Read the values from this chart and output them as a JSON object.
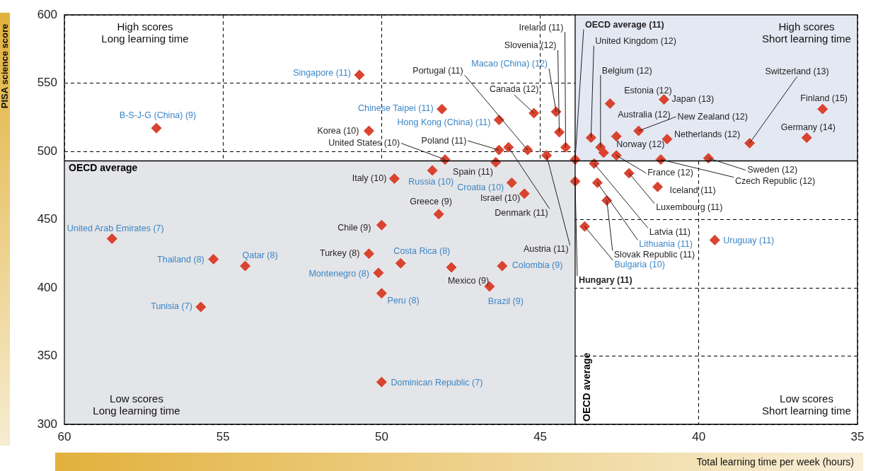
{
  "chart_data": {
    "type": "scatter",
    "xlabel": "Total learning time per week (hours)",
    "ylabel": "PISA science score",
    "xlim": [
      60,
      35
    ],
    "xticks": [
      60,
      55,
      50,
      45,
      40,
      35
    ],
    "ylim": [
      300,
      600
    ],
    "yticks": [
      300,
      350,
      400,
      450,
      500,
      550,
      600
    ],
    "grid": true,
    "marker": "diamond",
    "legend": false,
    "series": [
      {
        "color": "#d9432f",
        "x": [
          50.4,
          48.0,
          46.3,
          45.4,
          45.2,
          44.4,
          44.2,
          46.0,
          44.8,
          46.4,
          49.6,
          45.5,
          48.2,
          50.0,
          50.4,
          47.8,
          43.9,
          42.9,
          43.3,
          42.2,
          41.3,
          42.6,
          41.2,
          39.7,
          43.9,
          43.4,
          43.1,
          43.0,
          42.8,
          41.1,
          42.6,
          41.9,
          41.0,
          38.4,
          36.1,
          36.6
        ],
        "values": [
          515,
          494,
          501,
          501,
          528,
          514,
          503,
          503,
          497,
          492,
          480,
          469,
          454,
          446,
          425,
          415,
          478,
          464,
          491,
          484,
          474,
          497,
          494,
          495,
          494,
          510,
          503,
          499,
          535,
          538,
          511,
          515,
          509,
          506,
          531,
          510
        ]
      },
      {
        "color": "#d9432f",
        "x": [
          50.7,
          57.1,
          48.1,
          46.3,
          44.5,
          48.4,
          45.9,
          58.5,
          55.3,
          54.3,
          50.1,
          49.4,
          50.0,
          55.7,
          50.0,
          46.2,
          46.6,
          43.6,
          43.2,
          39.5
        ],
        "values": [
          556,
          517,
          531,
          523,
          529,
          486,
          477,
          436,
          421,
          416,
          411,
          418,
          396,
          386,
          331,
          416,
          401,
          445,
          477,
          435
        ]
      }
    ],
    "ref_lines": [
      {
        "axis": "y",
        "value": 493,
        "label": "OECD average",
        "color": "#000000"
      },
      {
        "axis": "x",
        "value": 43.9,
        "label": "OECD average",
        "color": "#000000"
      }
    ],
    "bands": [
      {
        "axis": "x",
        "from": 60,
        "to": 43.9,
        "color": "#e4e5e8"
      },
      {
        "axis": "x",
        "from": 43.9,
        "to": 35,
        "color": "#e3e8f3"
      }
    ],
    "annotations": [
      "High scores\nLong learning time",
      "High scores\nShort learning time",
      "Low scores\nLong learning time",
      "Low scores\nShort learning time",
      {
        "text": "Singapore (11)",
        "x": 50.7,
        "y": 556
      },
      {
        "text": "B-S-J-G (China) (9)",
        "x": 57.1,
        "y": 517
      },
      {
        "text": "Korea (10)",
        "x": 50.4,
        "y": 515
      },
      {
        "text": "Chinese Taipei (11)",
        "x": 48.1,
        "y": 531
      },
      {
        "text": "Hong Kong (China) (11)",
        "x": 46.3,
        "y": 523
      },
      {
        "text": "United States (10)",
        "x": 48.0,
        "y": 494
      },
      {
        "text": "Poland (11)",
        "x": 46.3,
        "y": 501
      },
      {
        "text": "Portugal (11)",
        "x": 45.4,
        "y": 501
      },
      {
        "text": "Canada (12)",
        "x": 45.2,
        "y": 528
      },
      {
        "text": "Macao (China) (12)",
        "x": 44.5,
        "y": 529
      },
      {
        "text": "Slovenia (12)",
        "x": 44.4,
        "y": 514
      },
      {
        "text": "Ireland (11)",
        "x": 44.2,
        "y": 503
      },
      {
        "text": "Denmark (11)",
        "x": 46.0,
        "y": 503
      },
      {
        "text": "Austria (11)",
        "x": 44.8,
        "y": 497
      },
      {
        "text": "Spain (11)",
        "x": 46.4,
        "y": 492
      },
      {
        "text": "Russia (10)",
        "x": 48.4,
        "y": 486
      },
      {
        "text": "Italy (10)",
        "x": 49.6,
        "y": 480
      },
      {
        "text": "Croatia (10)",
        "x": 45.9,
        "y": 477
      },
      {
        "text": "Israel (10)",
        "x": 45.5,
        "y": 469
      },
      {
        "text": "Greece (9)",
        "x": 48.2,
        "y": 454
      },
      {
        "text": "Chile (9)",
        "x": 50.0,
        "y": 446
      },
      {
        "text": "United Arab Emirates (7)",
        "x": 58.5,
        "y": 436
      },
      {
        "text": "Thailand (8)",
        "x": 55.3,
        "y": 421
      },
      {
        "text": "Qatar (8)",
        "x": 54.3,
        "y": 416
      },
      {
        "text": "Turkey (8)",
        "x": 50.4,
        "y": 425
      },
      {
        "text": "Montenegro (8)",
        "x": 50.1,
        "y": 411
      },
      {
        "text": "Costa Rica (8)",
        "x": 49.4,
        "y": 418
      },
      {
        "text": "Peru (8)",
        "x": 50.0,
        "y": 396
      },
      {
        "text": "Tunisia (7)",
        "x": 55.7,
        "y": 386
      },
      {
        "text": "Dominican Republic (7)",
        "x": 50.0,
        "y": 331
      },
      {
        "text": "Mexico (9)",
        "x": 47.8,
        "y": 415
      },
      {
        "text": "Colombia (9)",
        "x": 46.2,
        "y": 416
      },
      {
        "text": "Brazil (9)",
        "x": 46.6,
        "y": 401
      },
      {
        "text": "Hungary (11)",
        "x": 43.9,
        "y": 478
      },
      {
        "text": "Bulgaria (10)",
        "x": 43.6,
        "y": 445
      },
      {
        "text": "Slovak Republic (11)",
        "x": 42.9,
        "y": 464
      },
      {
        "text": "Lithuania (11)",
        "x": 43.2,
        "y": 477
      },
      {
        "text": "Latvia (11)",
        "x": 43.3,
        "y": 491
      },
      {
        "text": "Luxembourg (11)",
        "x": 42.2,
        "y": 484
      },
      {
        "text": "Iceland (11)",
        "x": 41.3,
        "y": 474
      },
      {
        "text": "France (12)",
        "x": 42.6,
        "y": 497
      },
      {
        "text": "Czech Republic (12)",
        "x": 41.2,
        "y": 494
      },
      {
        "text": "Sweden (12)",
        "x": 39.7,
        "y": 495
      },
      {
        "text": "Uruguay (11)",
        "x": 39.5,
        "y": 435
      },
      {
        "text": "OECD average (11)",
        "x": 43.9,
        "y": 494
      },
      {
        "text": "United Kingdom (12)",
        "x": 43.4,
        "y": 510
      },
      {
        "text": "Belgium (12)",
        "x": 43.1,
        "y": 503
      },
      {
        "text": "Norway (12)",
        "x": 43.0,
        "y": 499
      },
      {
        "text": "Estonia (12)",
        "x": 42.8,
        "y": 535
      },
      {
        "text": "Japan (13)",
        "x": 41.1,
        "y": 538
      },
      {
        "text": "Australia (12)",
        "x": 42.6,
        "y": 511
      },
      {
        "text": "New Zealand (12)",
        "x": 41.9,
        "y": 515
      },
      {
        "text": "Netherlands (12)",
        "x": 41.0,
        "y": 509
      },
      {
        "text": "Switzerland (13)",
        "x": 38.4,
        "y": 506
      },
      {
        "text": "Finland (15)",
        "x": 36.1,
        "y": 531
      },
      {
        "text": "Germany (14)",
        "x": 36.6,
        "y": 510
      }
    ]
  }
}
